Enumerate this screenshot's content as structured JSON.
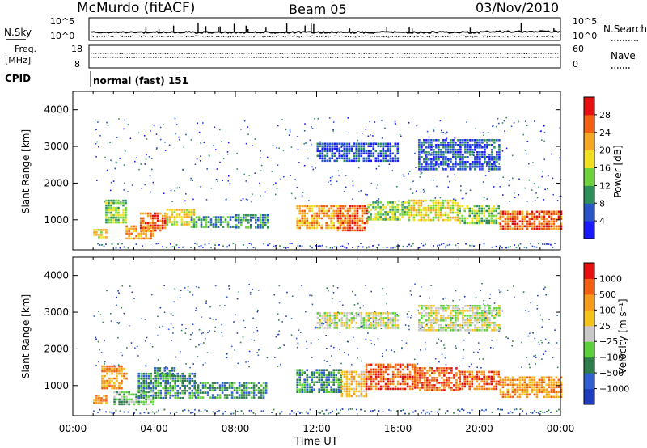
{
  "header": {
    "title": "McMurdo (fitACF)",
    "beam": "Beam 05",
    "date": "03/Nov/2010"
  },
  "top_panels": {
    "nsky_label": "N.Sky",
    "nsearch_label": "N.Search",
    "freq_label_1": "Freq.",
    "freq_label_2": "[MHz]",
    "nave_label": "Nave",
    "cpid_label": "CPID",
    "cpid_value": "normal (fast) 151",
    "noise_left_ticks": [
      "10^5",
      "10^0"
    ],
    "noise_right_ticks": [
      "10^5",
      "10^0"
    ],
    "freq_ticks": [
      "18",
      "8"
    ],
    "nave_ticks": [
      "60",
      "0"
    ]
  },
  "chart_data": [
    {
      "type": "heatmap",
      "ylabel": "Slant Range [km]",
      "ylim": [
        180,
        4500
      ],
      "yticks": [
        "1000",
        "2000",
        "3000",
        "4000"
      ],
      "xlim": [
        0,
        24
      ],
      "colorbar": {
        "label": "Power [dB]",
        "ticks": [
          "4",
          "8",
          "12",
          "16",
          "20",
          "24",
          "28"
        ],
        "colors": [
          "#1a1aff",
          "#2a55c8",
          "#2f8f5a",
          "#6fd23c",
          "#f0e020",
          "#f5a623",
          "#f06010",
          "#e61010"
        ]
      },
      "echo_bands": [
        {
          "start": 1.0,
          "end": 1.7,
          "low": 500,
          "high": 750,
          "level": 4
        },
        {
          "start": 1.6,
          "end": 2.6,
          "low": 900,
          "high": 1550,
          "level": 3
        },
        {
          "start": 2.6,
          "end": 4.0,
          "low": 480,
          "high": 850,
          "level": 5
        },
        {
          "start": 3.3,
          "end": 4.6,
          "low": 700,
          "high": 1200,
          "level": 6
        },
        {
          "start": 4.6,
          "end": 6.0,
          "low": 850,
          "high": 1300,
          "level": 4
        },
        {
          "start": 5.8,
          "end": 8.0,
          "low": 800,
          "high": 1100,
          "level": 2
        },
        {
          "start": 8.0,
          "end": 9.6,
          "low": 800,
          "high": 1150,
          "level": 2
        },
        {
          "start": 11.0,
          "end": 13.3,
          "low": 800,
          "high": 1400,
          "level": 5
        },
        {
          "start": 13.0,
          "end": 14.5,
          "low": 700,
          "high": 1400,
          "level": 6
        },
        {
          "start": 14.5,
          "end": 16.5,
          "low": 1000,
          "high": 1500,
          "level": 3
        },
        {
          "start": 16.5,
          "end": 19.0,
          "low": 1000,
          "high": 1550,
          "level": 4
        },
        {
          "start": 19.0,
          "end": 21.0,
          "low": 900,
          "high": 1400,
          "level": 3
        },
        {
          "start": 21.0,
          "end": 24.0,
          "low": 750,
          "high": 1250,
          "level": 6
        },
        {
          "start": 12.0,
          "end": 16.0,
          "low": 2600,
          "high": 3100,
          "level": 1
        },
        {
          "start": 17.0,
          "end": 21.0,
          "low": 2400,
          "high": 3200,
          "level": 1
        }
      ]
    },
    {
      "type": "heatmap",
      "xlabel": "Time UT",
      "ylabel": "Slant Range [km]",
      "ylim": [
        180,
        4500
      ],
      "yticks": [
        "1000",
        "2000",
        "3000",
        "4000"
      ],
      "xlim": [
        0,
        24
      ],
      "xticks": [
        "00:00",
        "04:00",
        "08:00",
        "12:00",
        "16:00",
        "20:00",
        "00:00"
      ],
      "colorbar": {
        "label": "Velocity [m s⁻¹]",
        "ticks": [
          "1000",
          "500",
          "100",
          "25",
          "−25",
          "−100",
          "−500",
          "−1000"
        ],
        "colors": [
          "#1f3dbf",
          "#2f5fd0",
          "#2e7d4a",
          "#5ccf3a",
          "#c8c8c8",
          "#f5c21a",
          "#f59a1a",
          "#f06010",
          "#e61010"
        ]
      },
      "echo_bands": [
        {
          "start": 1.0,
          "end": 1.7,
          "low": 500,
          "high": 750,
          "level": 6
        },
        {
          "start": 1.4,
          "end": 2.6,
          "low": 900,
          "high": 1550,
          "level": 6
        },
        {
          "start": 2.0,
          "end": 4.0,
          "low": 480,
          "high": 850,
          "level": 3
        },
        {
          "start": 3.2,
          "end": 6.0,
          "low": 650,
          "high": 1350,
          "level": 2
        },
        {
          "start": 4.0,
          "end": 5.0,
          "low": 1300,
          "high": 1500,
          "level": 2
        },
        {
          "start": 6.0,
          "end": 9.5,
          "low": 700,
          "high": 1100,
          "level": 2
        },
        {
          "start": 11.0,
          "end": 13.2,
          "low": 800,
          "high": 1450,
          "level": 2
        },
        {
          "start": 13.2,
          "end": 14.4,
          "low": 700,
          "high": 1400,
          "level": 5
        },
        {
          "start": 14.4,
          "end": 16.8,
          "low": 900,
          "high": 1600,
          "level": 7
        },
        {
          "start": 16.8,
          "end": 19.0,
          "low": 900,
          "high": 1500,
          "level": 7
        },
        {
          "start": 19.0,
          "end": 21.0,
          "low": 900,
          "high": 1400,
          "level": 7
        },
        {
          "start": 21.0,
          "end": 24.0,
          "low": 700,
          "high": 1250,
          "level": 6
        },
        {
          "start": 12.0,
          "end": 16.0,
          "low": 2600,
          "high": 3000,
          "level": 4
        },
        {
          "start": 17.0,
          "end": 21.0,
          "low": 2500,
          "high": 3200,
          "level": 4
        }
      ]
    }
  ]
}
